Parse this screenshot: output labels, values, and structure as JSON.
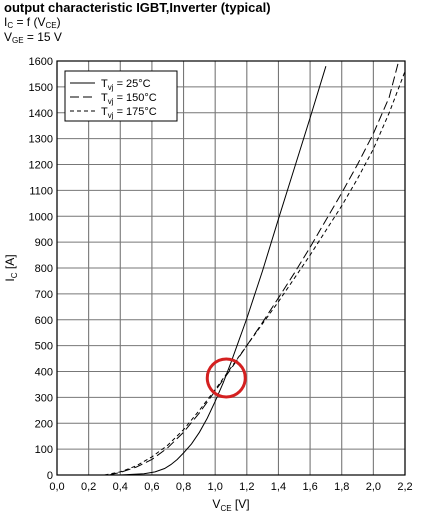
{
  "header": {
    "title": "output characteristic IGBT,Inverter (typical)",
    "line2_pre": "I",
    "line2_sub": "C",
    "line2_mid": " = f (V",
    "line2_sub2": "CE",
    "line2_post": ")",
    "line3_pre": "V",
    "line3_sub": "GE",
    "line3_post": " = 15 V"
  },
  "chart_data": {
    "type": "line",
    "title": "output characteristic IGBT,Inverter (typical)",
    "xlabel_main": "V",
    "xlabel_sub": "CE",
    "xlabel_unit": " [V]",
    "ylabel_main": "I",
    "ylabel_sub": "C",
    "ylabel_unit": " [A]",
    "xlim": [
      0.0,
      2.2
    ],
    "ylim": [
      0,
      1600
    ],
    "x_ticks": [
      "0,0",
      "0,2",
      "0,4",
      "0,6",
      "0,8",
      "1,0",
      "1,2",
      "1,4",
      "1,6",
      "1,8",
      "2,0",
      "2,2"
    ],
    "x_tick_values": [
      0,
      0.2,
      0.4,
      0.6,
      0.8,
      1.0,
      1.2,
      1.4,
      1.6,
      1.8,
      2.0,
      2.2
    ],
    "y_ticks": [
      0,
      100,
      200,
      300,
      400,
      500,
      600,
      700,
      800,
      900,
      1000,
      1100,
      1200,
      1300,
      1400,
      1500,
      1600
    ],
    "grid": true,
    "legend_position": "top-left",
    "series": [
      {
        "name_pre": "T",
        "name_sub": "vj",
        "name_post": " = 25°C",
        "dash": "solid",
        "x": [
          0.4,
          0.55,
          0.62,
          0.68,
          0.72,
          0.76,
          0.8,
          0.85,
          0.9,
          0.95,
          1.0,
          1.05,
          1.1,
          1.15,
          1.2,
          1.3,
          1.4,
          1.5,
          1.6,
          1.7
        ],
        "y": [
          0,
          5,
          12,
          25,
          40,
          60,
          85,
          120,
          165,
          220,
          285,
          355,
          435,
          520,
          605,
          790,
          990,
          1185,
          1380,
          1580
        ]
      },
      {
        "name_pre": "T",
        "name_sub": "vj",
        "name_post": " = 150°C",
        "dash": "long-dash",
        "x": [
          0.33,
          0.4,
          0.5,
          0.6,
          0.7,
          0.8,
          0.9,
          1.0,
          1.1,
          1.2,
          1.3,
          1.4,
          1.5,
          1.6,
          1.7,
          1.8,
          1.9,
          2.0,
          2.1,
          2.16
        ],
        "y": [
          0,
          10,
          30,
          60,
          105,
          165,
          240,
          325,
          410,
          500,
          590,
          685,
          780,
          880,
          985,
          1090,
          1200,
          1320,
          1460,
          1600
        ]
      },
      {
        "name_pre": "T",
        "name_sub": "vj",
        "name_post": " = 175°C",
        "dash": "short-dash",
        "x": [
          0.3,
          0.4,
          0.5,
          0.6,
          0.7,
          0.8,
          0.9,
          1.0,
          1.1,
          1.2,
          1.3,
          1.4,
          1.5,
          1.6,
          1.7,
          1.8,
          1.9,
          2.0,
          2.1,
          2.2
        ],
        "y": [
          0,
          12,
          35,
          70,
          115,
          175,
          250,
          330,
          415,
          500,
          585,
          670,
          760,
          850,
          945,
          1040,
          1145,
          1260,
          1400,
          1560
        ]
      }
    ],
    "annotation": {
      "shape": "circle",
      "color": "#d42020",
      "cx": 1.07,
      "cy": 375
    }
  }
}
